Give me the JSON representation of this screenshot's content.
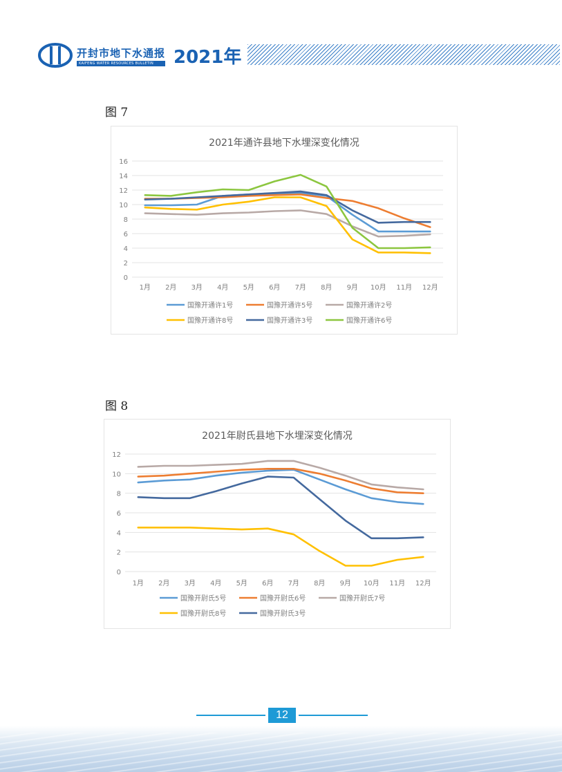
{
  "header": {
    "title": "开封市地下水通报",
    "subtitle": "KAIFENG WATER RESOURCES BULLETIN",
    "year": "2021年"
  },
  "figures": [
    {
      "label": "图 7"
    },
    {
      "label": "图 8"
    }
  ],
  "footer": {
    "page": "12"
  },
  "colors": {
    "brand": "#1a62b3",
    "series_blue_light": "#5b9bd5",
    "series_orange": "#ed7d31",
    "series_gray": "#b8a9a6",
    "series_yellow": "#ffc000",
    "series_blue_dark": "#44699e",
    "series_green": "#8cc63f"
  },
  "chart_data": [
    {
      "type": "line",
      "title": "2021年通许县地下水埋深变化情况",
      "categories": [
        "1月",
        "2月",
        "3月",
        "4月",
        "5月",
        "6月",
        "7月",
        "8月",
        "9月",
        "10月",
        "11月",
        "12月"
      ],
      "ylim": [
        0,
        16
      ],
      "yticks": [
        0,
        2,
        4,
        6,
        8,
        10,
        12,
        14,
        16
      ],
      "grid": true,
      "legend": "bottom",
      "series": [
        {
          "name": "国豫开通许1号",
          "color": "#5b9bd5",
          "values": [
            9.9,
            9.9,
            10.0,
            11.2,
            11.4,
            11.5,
            11.6,
            11.2,
            8.6,
            6.3,
            6.3,
            6.3
          ]
        },
        {
          "name": "国豫开通许5号",
          "color": "#ed7d31",
          "values": [
            10.8,
            10.8,
            10.9,
            11.0,
            11.2,
            11.3,
            11.4,
            10.9,
            10.5,
            9.5,
            8.1,
            6.9
          ]
        },
        {
          "name": "国豫开通许2号",
          "color": "#b8a9a6",
          "values": [
            8.8,
            8.7,
            8.6,
            8.8,
            8.9,
            9.1,
            9.2,
            8.7,
            7.0,
            5.6,
            5.7,
            5.9
          ]
        },
        {
          "name": "国豫开通许8号",
          "color": "#ffc000",
          "values": [
            9.6,
            9.4,
            9.3,
            10.0,
            10.4,
            11.0,
            11.0,
            9.8,
            5.2,
            3.4,
            3.4,
            3.3
          ]
        },
        {
          "name": "国豫开通许3号",
          "color": "#44699e",
          "values": [
            10.7,
            10.8,
            11.0,
            11.2,
            11.4,
            11.6,
            11.8,
            11.3,
            9.2,
            7.5,
            7.6,
            7.6
          ]
        },
        {
          "name": "国豫开通许6号",
          "color": "#8cc63f",
          "values": [
            11.3,
            11.2,
            11.7,
            12.1,
            12.0,
            13.2,
            14.1,
            12.5,
            6.8,
            4.0,
            4.0,
            4.1
          ]
        }
      ]
    },
    {
      "type": "line",
      "title": "2021年尉氏县地下水埋深变化情况",
      "categories": [
        "1月",
        "2月",
        "3月",
        "4月",
        "5月",
        "6月",
        "7月",
        "8月",
        "9月",
        "10月",
        "11月",
        "12月"
      ],
      "ylim": [
        0,
        12
      ],
      "yticks": [
        0,
        2,
        4,
        6,
        8,
        10,
        12
      ],
      "grid": true,
      "legend": "bottom",
      "series": [
        {
          "name": "国豫开尉氏5号",
          "color": "#5b9bd5",
          "values": [
            9.1,
            9.3,
            9.4,
            9.8,
            10.1,
            10.3,
            10.4,
            9.4,
            8.4,
            7.5,
            7.1,
            6.9
          ]
        },
        {
          "name": "国豫开尉氏6号",
          "color": "#ed7d31",
          "values": [
            9.7,
            9.8,
            10.0,
            10.2,
            10.4,
            10.5,
            10.5,
            10.0,
            9.3,
            8.5,
            8.1,
            8.0
          ]
        },
        {
          "name": "国豫开尉氏7号",
          "color": "#b8a9a6",
          "values": [
            10.7,
            10.8,
            10.8,
            10.9,
            11.0,
            11.3,
            11.3,
            10.6,
            9.8,
            8.9,
            8.6,
            8.4
          ]
        },
        {
          "name": "国豫开尉氏8号",
          "color": "#ffc000",
          "values": [
            4.5,
            4.5,
            4.5,
            4.4,
            4.3,
            4.4,
            3.8,
            2.1,
            0.6,
            0.6,
            1.2,
            1.5
          ]
        },
        {
          "name": "国豫开尉氏3号",
          "color": "#44699e",
          "values": [
            7.6,
            7.5,
            7.5,
            8.2,
            9.0,
            9.7,
            9.6,
            7.4,
            5.2,
            3.4,
            3.4,
            3.5
          ]
        }
      ]
    }
  ]
}
